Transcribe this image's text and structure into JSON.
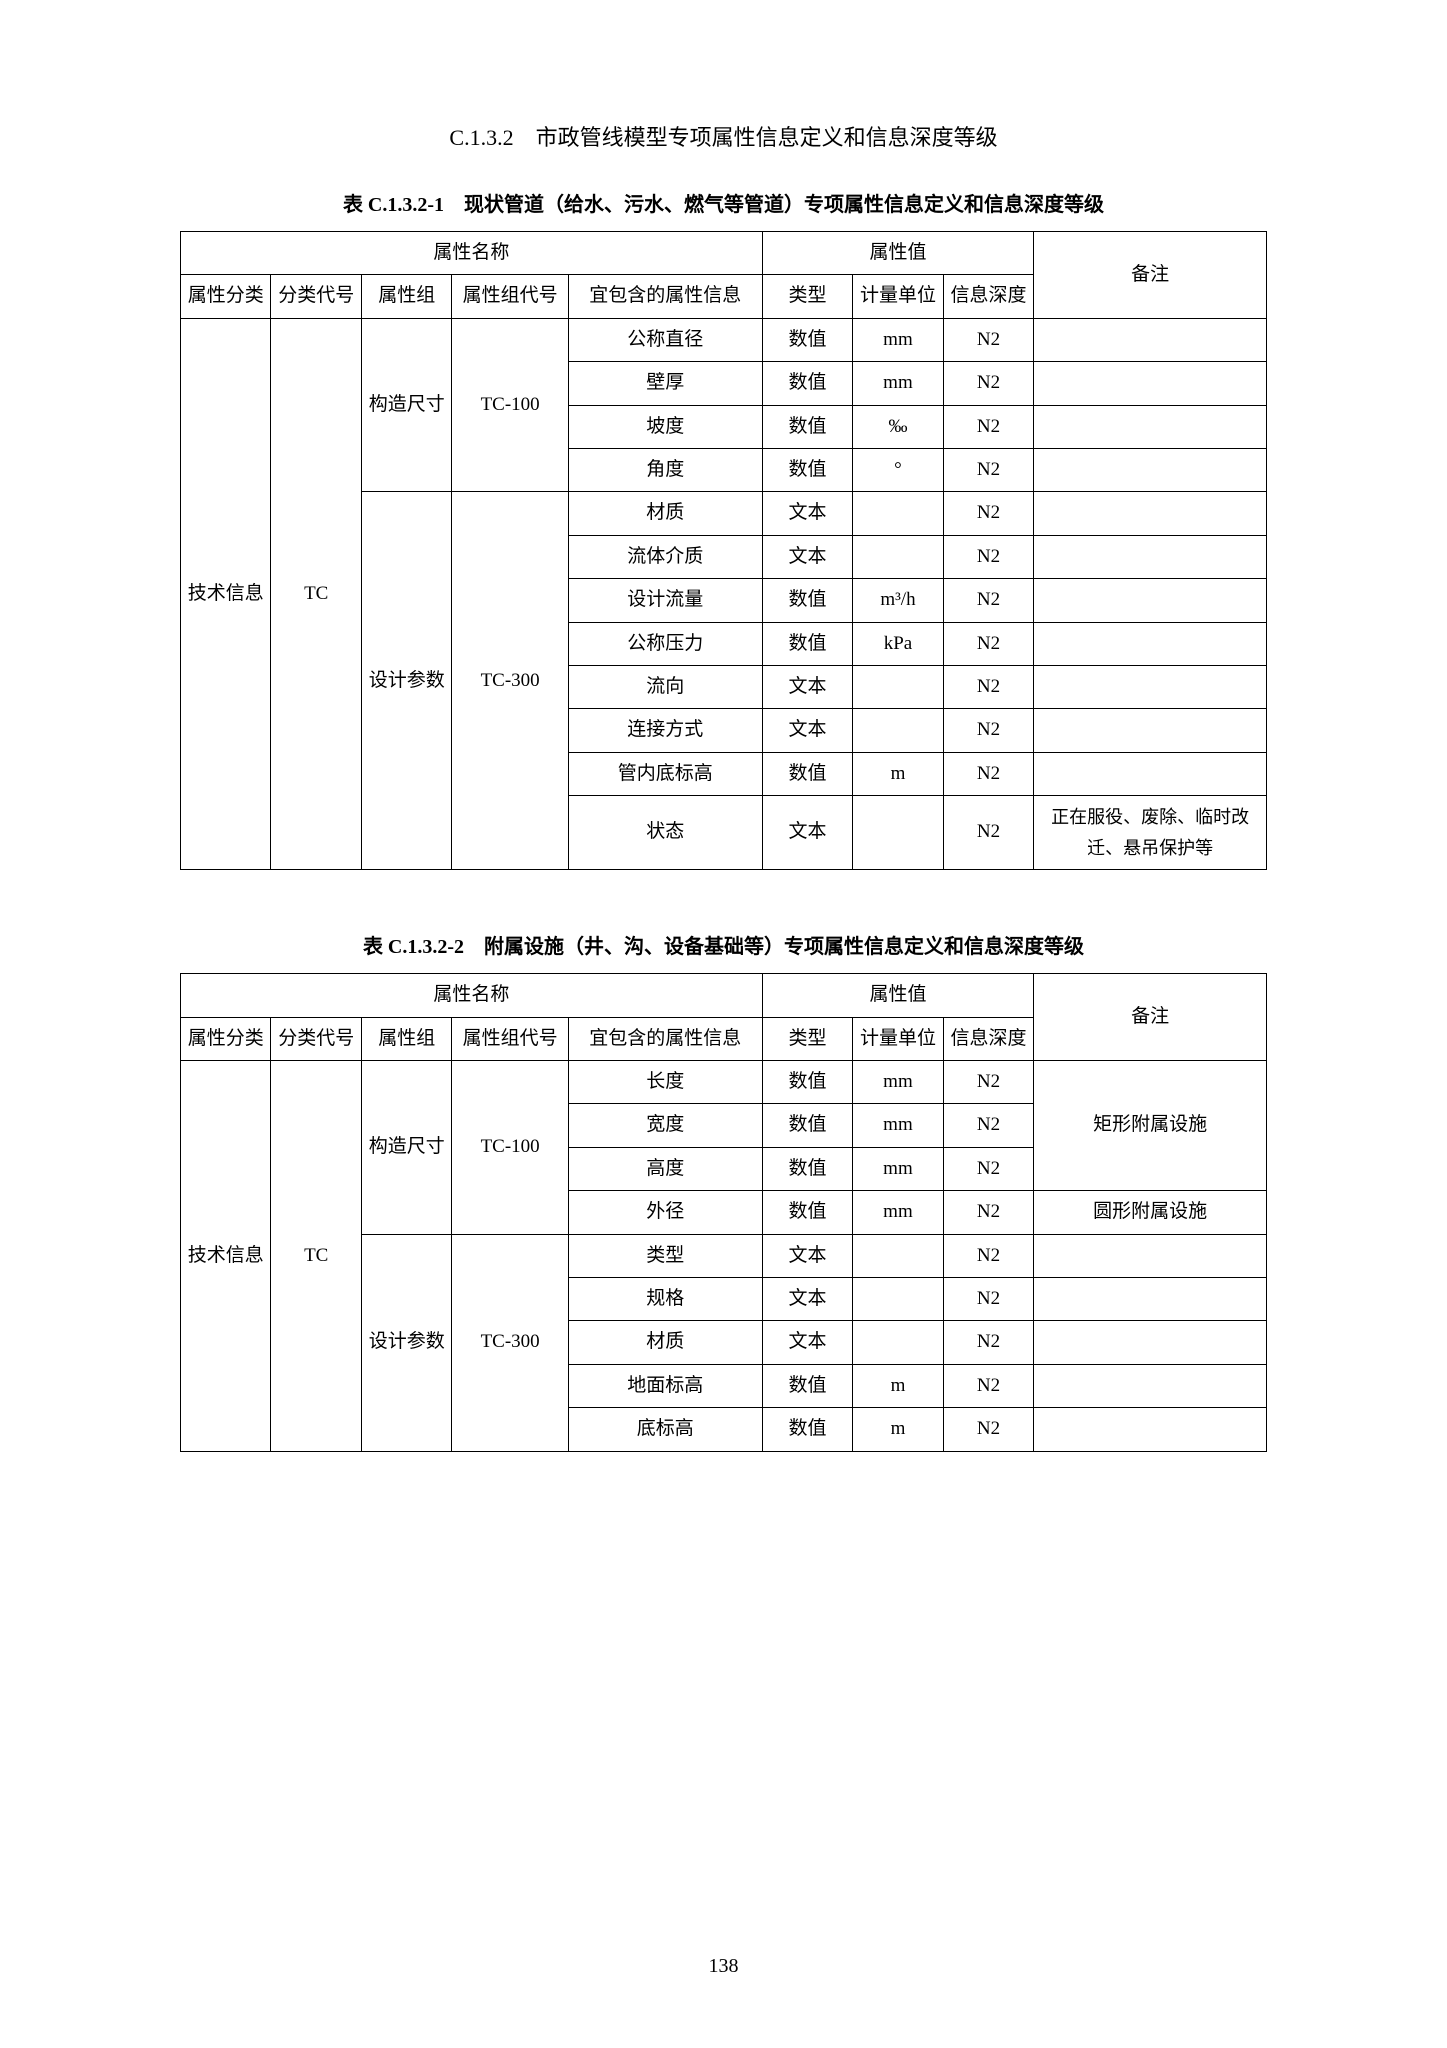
{
  "section_title": "C.1.3.2　市政管线模型专项属性信息定义和信息深度等级",
  "table1": {
    "caption": "表 C.1.3.2-1　现状管道（给水、污水、燃气等管道）专项属性信息定义和信息深度等级",
    "header_group1": "属性名称",
    "header_group2": "属性值",
    "h_attr_class": "属性分类",
    "h_class_code": "分类代号",
    "h_attr_group": "属性组",
    "h_group_code": "属性组代号",
    "h_contained": "宜包含的属性信息",
    "h_type": "类型",
    "h_unit": "计量单位",
    "h_depth": "信息深度",
    "h_remark": "备注",
    "attr_class": "技术信息",
    "class_code": "TC",
    "group1_name": "构造尺寸",
    "group1_code": "TC-100",
    "group2_name": "设计参数",
    "group2_code": "TC-300",
    "rows": [
      {
        "info": "公称直径",
        "type": "数值",
        "unit": "mm",
        "depth": "N2",
        "remark": ""
      },
      {
        "info": "壁厚",
        "type": "数值",
        "unit": "mm",
        "depth": "N2",
        "remark": ""
      },
      {
        "info": "坡度",
        "type": "数值",
        "unit": "‰",
        "depth": "N2",
        "remark": ""
      },
      {
        "info": "角度",
        "type": "数值",
        "unit": "°",
        "depth": "N2",
        "remark": ""
      },
      {
        "info": "材质",
        "type": "文本",
        "unit": "",
        "depth": "N2",
        "remark": ""
      },
      {
        "info": "流体介质",
        "type": "文本",
        "unit": "",
        "depth": "N2",
        "remark": ""
      },
      {
        "info": "设计流量",
        "type": "数值",
        "unit": "m³/h",
        "depth": "N2",
        "remark": ""
      },
      {
        "info": "公称压力",
        "type": "数值",
        "unit": "kPa",
        "depth": "N2",
        "remark": ""
      },
      {
        "info": "流向",
        "type": "文本",
        "unit": "",
        "depth": "N2",
        "remark": ""
      },
      {
        "info": "连接方式",
        "type": "文本",
        "unit": "",
        "depth": "N2",
        "remark": ""
      },
      {
        "info": "管内底标高",
        "type": "数值",
        "unit": "m",
        "depth": "N2",
        "remark": ""
      },
      {
        "info": "状态",
        "type": "文本",
        "unit": "",
        "depth": "N2",
        "remark": "正在服役、废除、临时改迁、悬吊保护等"
      }
    ]
  },
  "table2": {
    "caption": "表 C.1.3.2-2　附属设施（井、沟、设备基础等）专项属性信息定义和信息深度等级",
    "header_group1": "属性名称",
    "header_group2": "属性值",
    "h_attr_class": "属性分类",
    "h_class_code": "分类代号",
    "h_attr_group": "属性组",
    "h_group_code": "属性组代号",
    "h_contained": "宜包含的属性信息",
    "h_type": "类型",
    "h_unit": "计量单位",
    "h_depth": "信息深度",
    "h_remark": "备注",
    "attr_class": "技术信息",
    "class_code": "TC",
    "group1_name": "构造尺寸",
    "group1_code": "TC-100",
    "group2_name": "设计参数",
    "group2_code": "TC-300",
    "remark_rect": "矩形附属设施",
    "remark_circ": "圆形附属设施",
    "rows": [
      {
        "info": "长度",
        "type": "数值",
        "unit": "mm",
        "depth": "N2"
      },
      {
        "info": "宽度",
        "type": "数值",
        "unit": "mm",
        "depth": "N2"
      },
      {
        "info": "高度",
        "type": "数值",
        "unit": "mm",
        "depth": "N2"
      },
      {
        "info": "外径",
        "type": "数值",
        "unit": "mm",
        "depth": "N2"
      },
      {
        "info": "类型",
        "type": "文本",
        "unit": "",
        "depth": "N2"
      },
      {
        "info": "规格",
        "type": "文本",
        "unit": "",
        "depth": "N2"
      },
      {
        "info": "材质",
        "type": "文本",
        "unit": "",
        "depth": "N2"
      },
      {
        "info": "地面标高",
        "type": "数值",
        "unit": "m",
        "depth": "N2"
      },
      {
        "info": "底标高",
        "type": "数值",
        "unit": "m",
        "depth": "N2"
      }
    ]
  },
  "page_number": "138"
}
